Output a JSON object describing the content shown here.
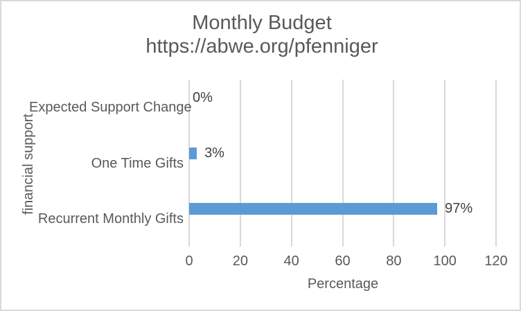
{
  "chart": {
    "title": "Monthly Budget",
    "subtitle": "https://abwe.org/pfenniger",
    "x_axis_title": "Percentage",
    "y_axis_title": "financial support"
  },
  "chart_data": {
    "type": "bar",
    "orientation": "horizontal",
    "title": "Monthly Budget",
    "subtitle": "https://abwe.org/pfenniger",
    "xlabel": "Percentage",
    "ylabel": "financial support",
    "categories": [
      "Expected Support Change",
      "One Time Gifts",
      "Recurrent Monthly Gifts"
    ],
    "values": [
      0,
      3,
      97
    ],
    "data_labels": [
      "0%",
      "3%",
      "97%"
    ],
    "xlim": [
      0,
      120
    ],
    "x_ticks": [
      0,
      20,
      40,
      60,
      80,
      100,
      120
    ],
    "grid": true,
    "legend": "none",
    "bar_color": "#5b9bd5",
    "gridline_color": "#d9d9d9",
    "label_color": "#404040",
    "axis_text_color": "#595959"
  }
}
